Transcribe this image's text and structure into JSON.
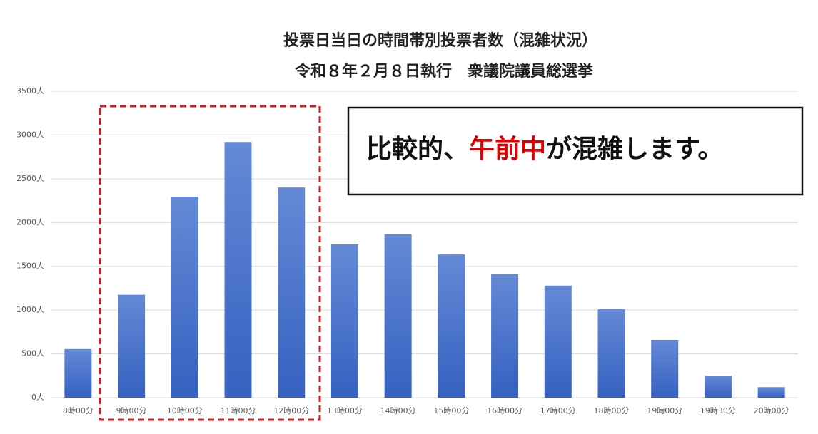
{
  "chart_data": {
    "type": "bar",
    "title": "投票日当日の時間帯別投票者数（混雑状況）",
    "subtitle": "令和８年２月８日執行　衆議院議員総選挙",
    "annotation": {
      "parts": [
        {
          "text": "比較的、",
          "color": "#111111"
        },
        {
          "text": "午前中",
          "color": "#e00000"
        },
        {
          "text": "が混雑します。",
          "color": "#111111"
        }
      ]
    },
    "categories": [
      "8時00分",
      "9時00分",
      "10時00分",
      "11時00分",
      "12時00分",
      "13時00分",
      "14時00分",
      "15時00分",
      "16時00分",
      "17時00分",
      "18時00分",
      "19時00分",
      "19時30分",
      "20時00分"
    ],
    "values": [
      555,
      1175,
      2295,
      2920,
      2400,
      1750,
      1865,
      1635,
      1410,
      1280,
      1010,
      660,
      250,
      120
    ],
    "color": "#4a72c8",
    "ylim": [
      0,
      3500
    ],
    "yticks": [
      {
        "value": 0,
        "label": "0人"
      },
      {
        "value": 500,
        "label": "500人"
      },
      {
        "value": 1000,
        "label": "1000人"
      },
      {
        "value": 1500,
        "label": "1500人"
      },
      {
        "value": 2000,
        "label": "2000人"
      },
      {
        "value": 2500,
        "label": "2500人"
      },
      {
        "value": 3000,
        "label": "3000人"
      },
      {
        "value": 3500,
        "label": "3500人"
      }
    ],
    "grid": true
  }
}
